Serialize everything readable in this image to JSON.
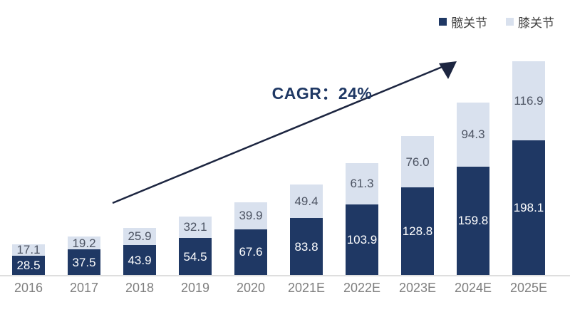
{
  "legend": {
    "items": [
      {
        "label": "髋关节",
        "color": "#1f3864"
      },
      {
        "label": "膝关节",
        "color": "#d9e1ee"
      }
    ]
  },
  "annotation": {
    "cagr_label": "CAGR：24%"
  },
  "chart_data": {
    "type": "bar",
    "stacked": true,
    "title": "",
    "xlabel": "",
    "ylabel": "",
    "grid": false,
    "legend_position": "top-right",
    "ylim": [
      0,
      330
    ],
    "categories": [
      "2016",
      "2017",
      "2018",
      "2019",
      "2020",
      "2021E",
      "2022E",
      "2023E",
      "2024E",
      "2025E"
    ],
    "series": [
      {
        "name": "髋关节",
        "color": "#1f3864",
        "label_color": "#ffffff",
        "values": [
          28.5,
          37.5,
          43.9,
          54.5,
          67.6,
          83.8,
          103.9,
          128.8,
          159.8,
          198.1
        ],
        "labels": [
          "28.5",
          "37.5",
          "43.9",
          "54.5",
          "67.6",
          "83.8",
          "103.9",
          "128.8",
          "159.8",
          "198.1"
        ]
      },
      {
        "name": "膝关节",
        "color": "#d9e1ee",
        "label_color": "#4d5463",
        "values": [
          17.1,
          19.2,
          25.9,
          32.1,
          39.9,
          49.4,
          61.3,
          76.0,
          94.3,
          116.9
        ],
        "labels": [
          "17.1",
          "19.2",
          "25.9",
          "32.1",
          "39.9",
          "49.4",
          "61.3",
          "76.0",
          "94.3",
          "116.9"
        ]
      }
    ],
    "annotations": [
      {
        "text": "CAGR：24%",
        "type": "trend-arrow"
      }
    ]
  },
  "colors": {
    "axis_line": "#dedede",
    "x_label": "#7f7f7f",
    "arrow": "#1c2540",
    "cagr_text": "#1f3864"
  }
}
